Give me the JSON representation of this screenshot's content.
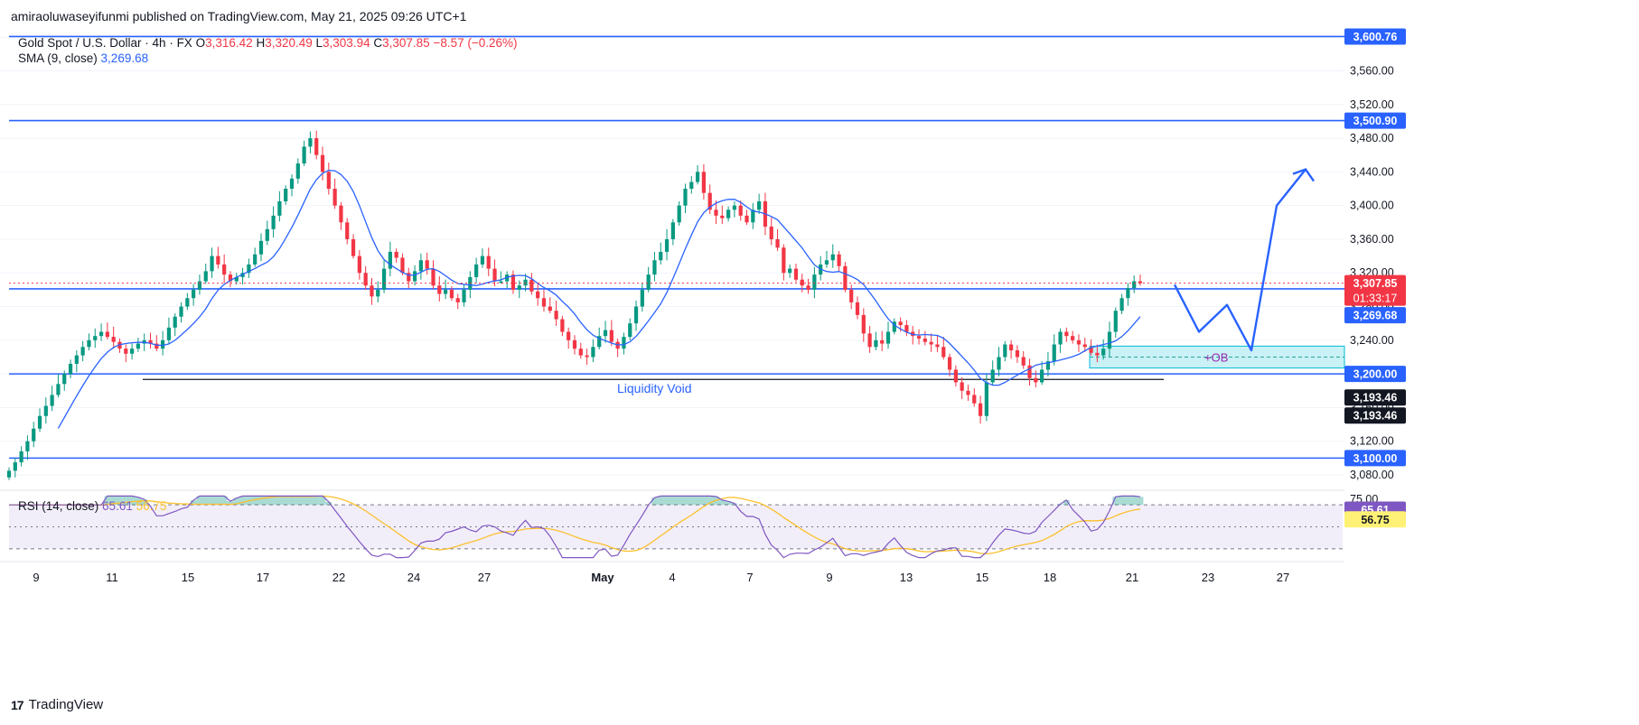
{
  "publisher": "amiraoluwaseyifunmi published on TradingView.com, May 21, 2025 09:26 UTC+1",
  "legend": {
    "symbol": "Gold Spot / U.S. Dollar · 4h · FX",
    "o_label": "O",
    "o_value": "3,316.42",
    "h_label": "H",
    "h_value": "3,320.49",
    "l_label": "L",
    "l_value": "3,303.94",
    "c_label": "C",
    "c_value": "3,307.85",
    "change": "−8.57 (−0.26%)",
    "sma_label": "SMA (9, close)",
    "sma_value": "3,269.68",
    "rsi_label": "RSI (14, close)",
    "rsi_value": "65.61",
    "rsi_ma_value": "56.75"
  },
  "annotations": {
    "liquidity_void": "Liquidity Void",
    "ob": "+OB"
  },
  "footer": {
    "brand": "TradingView"
  },
  "colors": {
    "up": "#089981",
    "down": "#f23645",
    "sma": "#2962ff",
    "level": "#2962ff",
    "rsi": "#7e57c2",
    "rsi_ma": "#fbc02d",
    "ob": "#b2ebf2"
  },
  "chart_data": {
    "type": "candlestick",
    "title": "Gold Spot / U.S. Dollar · 4h · FX",
    "price_ticks": [
      "3,080.00",
      "3,120.00",
      "3,160.00",
      "3,200.00",
      "3,240.00",
      "3,280.00",
      "3,320.00",
      "3,360.00",
      "3,400.00",
      "3,440.00",
      "3,480.00",
      "3,520.00",
      "3,560.00",
      "3,600.00"
    ],
    "price_range": [
      3065,
      3612
    ],
    "x_ticks": [
      "9",
      "11",
      "15",
      "17",
      "22",
      "24",
      "27",
      "May",
      "4",
      "7",
      "9",
      "13",
      "15",
      "18",
      "21",
      "23",
      "27"
    ],
    "levels": [
      {
        "value": 3600.76,
        "label": "3,600.76"
      },
      {
        "value": 3500.9,
        "label": "3,500.90"
      },
      {
        "value": 3301.0,
        "label": "3,301.00"
      },
      {
        "value": 3200.0,
        "label": "3,200.00"
      },
      {
        "value": 3100.0,
        "label": "3,100.00"
      }
    ],
    "liquidity_line": {
      "value": 3193.46,
      "label": "3,193.46"
    },
    "last_price": {
      "value": 3307.85,
      "label": "3,307.85",
      "countdown": "01:33:17"
    },
    "sma_last": {
      "value": 3269.68,
      "label": "3,269.68"
    },
    "ob_zone": [
      3207,
      3233
    ],
    "projection": [
      [
        0,
        3306
      ],
      [
        1,
        3250
      ],
      [
        2,
        3282
      ],
      [
        3,
        3228
      ],
      [
        4,
        3400
      ],
      [
        5,
        3443
      ]
    ],
    "rsi": {
      "range": [
        20,
        80
      ],
      "ticks": [
        "75.00"
      ],
      "band": [
        30,
        70
      ],
      "last": 65.61,
      "ma_last": 56.75
    },
    "closes": [
      3085,
      3095,
      3108,
      3120,
      3135,
      3150,
      3162,
      3175,
      3188,
      3200,
      3212,
      3222,
      3232,
      3240,
      3245,
      3250,
      3244,
      3238,
      3230,
      3224,
      3230,
      3236,
      3240,
      3236,
      3230,
      3240,
      3255,
      3268,
      3280,
      3290,
      3300,
      3310,
      3322,
      3340,
      3330,
      3318,
      3310,
      3315,
      3320,
      3330,
      3342,
      3358,
      3372,
      3388,
      3405,
      3420,
      3432,
      3450,
      3470,
      3480,
      3460,
      3440,
      3420,
      3400,
      3380,
      3360,
      3340,
      3320,
      3305,
      3292,
      3300,
      3325,
      3345,
      3338,
      3320,
      3310,
      3322,
      3335,
      3325,
      3305,
      3295,
      3300,
      3290,
      3285,
      3300,
      3315,
      3330,
      3340,
      3325,
      3310,
      3310,
      3318,
      3300,
      3305,
      3312,
      3298,
      3290,
      3280,
      3275,
      3265,
      3250,
      3240,
      3230,
      3222,
      3220,
      3232,
      3245,
      3252,
      3238,
      3230,
      3244,
      3260,
      3280,
      3300,
      3318,
      3335,
      3345,
      3360,
      3380,
      3400,
      3420,
      3428,
      3440,
      3415,
      3395,
      3388,
      3385,
      3395,
      3400,
      3388,
      3380,
      3395,
      3405,
      3375,
      3360,
      3350,
      3320,
      3325,
      3312,
      3305,
      3300,
      3318,
      3330,
      3335,
      3342,
      3328,
      3300,
      3285,
      3270,
      3248,
      3232,
      3240,
      3236,
      3250,
      3262,
      3258,
      3250,
      3245,
      3242,
      3238,
      3235,
      3232,
      3220,
      3205,
      3190,
      3180,
      3175,
      3165,
      3150,
      3190,
      3205,
      3220,
      3235,
      3228,
      3220,
      3210,
      3195,
      3190,
      3205,
      3215,
      3235,
      3250,
      3245,
      3240,
      3235,
      3232,
      3225,
      3222,
      3230,
      3250,
      3275,
      3290,
      3302,
      3310,
      3307.85
    ]
  }
}
